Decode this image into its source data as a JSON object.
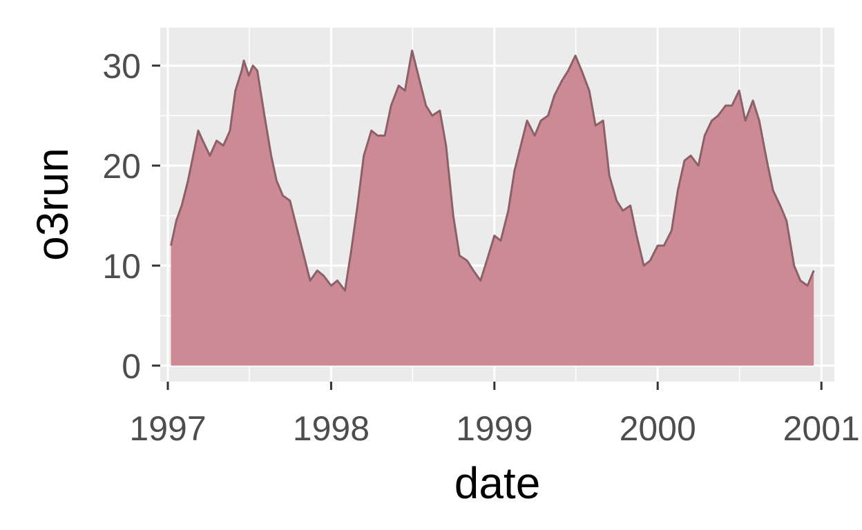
{
  "chart_data": {
    "type": "area",
    "title": "",
    "xlabel": "date",
    "ylabel": "o3run",
    "x_ticks": [
      "1997",
      "1998",
      "1999",
      "2000",
      "2001"
    ],
    "y_ticks": [
      0,
      10,
      20,
      30
    ],
    "xlim": [
      "1996-12-15",
      "2001-01-30"
    ],
    "ylim": [
      -1.6,
      33.8
    ],
    "grid": true,
    "legend": "none",
    "colors": {
      "panel": "#EBEBEB",
      "grid": "#FFFFFF",
      "fill": "#CC8A94",
      "line": "#8B6068",
      "tick_text": "#4D4D4D"
    },
    "series": [
      {
        "x": [
          "1997-01-08",
          "1997-01-20",
          "1997-02-01",
          "1997-02-15",
          "1997-03-01",
          "1997-03-10",
          "1997-03-20",
          "1997-04-05",
          "1997-04-20",
          "1997-05-05",
          "1997-05-20",
          "1997-06-01",
          "1997-06-15",
          "1997-06-20",
          "1997-07-01",
          "1997-07-10",
          "1997-07-20",
          "1997-08-05",
          "1997-08-20",
          "1997-09-01",
          "1997-09-15",
          "1997-10-01",
          "1997-10-15",
          "1997-11-01",
          "1997-11-15",
          "1997-12-01",
          "1997-12-15",
          "1998-01-01",
          "1998-01-15",
          "1998-02-01",
          "1998-02-15",
          "1998-03-01",
          "1998-03-15",
          "1998-04-01",
          "1998-04-15",
          "1998-05-01",
          "1998-05-15",
          "1998-06-01",
          "1998-06-15",
          "1998-07-01",
          "1998-07-15",
          "1998-08-01",
          "1998-08-15",
          "1998-09-01",
          "1998-09-15",
          "1998-10-01",
          "1998-10-15",
          "1998-11-01",
          "1998-11-15",
          "1998-12-01",
          "1998-12-15",
          "1999-01-01",
          "1999-01-15",
          "1999-02-01",
          "1999-02-15",
          "1999-03-01",
          "1999-03-15",
          "1999-04-01",
          "1999-04-15",
          "1999-05-01",
          "1999-05-15",
          "1999-06-01",
          "1999-06-15",
          "1999-07-01",
          "1999-07-15",
          "1999-08-01",
          "1999-08-15",
          "1999-09-01",
          "1999-09-15",
          "1999-10-01",
          "1999-10-15",
          "1999-11-01",
          "1999-11-15",
          "1999-12-01",
          "1999-12-15",
          "2000-01-01",
          "2000-01-15",
          "2000-02-01",
          "2000-02-15",
          "2000-03-01",
          "2000-03-15",
          "2000-04-01",
          "2000-04-15",
          "2000-05-01",
          "2000-05-15",
          "2000-06-01",
          "2000-06-15",
          "2000-07-01",
          "2000-07-15",
          "2000-08-01",
          "2000-08-15",
          "2000-09-01",
          "2000-09-15",
          "2000-10-01",
          "2000-10-15",
          "2000-11-01",
          "2000-11-15",
          "2000-12-01",
          "2000-12-15"
        ],
        "y": [
          12.0,
          14.5,
          16.0,
          18.5,
          21.5,
          23.5,
          22.5,
          21.0,
          22.5,
          22.0,
          23.5,
          27.5,
          29.5,
          30.5,
          29.0,
          30.0,
          29.5,
          25.0,
          21.0,
          18.5,
          17.0,
          16.5,
          14.0,
          11.0,
          8.5,
          9.5,
          9.0,
          8.0,
          8.5,
          7.5,
          11.5,
          16.0,
          21.0,
          23.5,
          23.0,
          23.0,
          26.0,
          28.0,
          27.5,
          31.5,
          29.0,
          26.0,
          25.0,
          25.5,
          22.0,
          15.0,
          11.0,
          10.5,
          9.5,
          8.5,
          10.5,
          13.0,
          12.5,
          15.5,
          19.5,
          22.0,
          24.5,
          23.0,
          24.5,
          25.0,
          27.0,
          28.5,
          29.5,
          31.0,
          29.5,
          27.5,
          24.0,
          24.5,
          19.0,
          16.5,
          15.5,
          16.0,
          13.0,
          10.0,
          10.5,
          12.0,
          12.0,
          13.5,
          17.5,
          20.5,
          21.0,
          20.0,
          23.0,
          24.5,
          25.0,
          26.0,
          26.0,
          27.5,
          24.5,
          26.5,
          24.5,
          20.5,
          17.5,
          16.0,
          14.5,
          10.0,
          8.5,
          8.0,
          9.5
        ]
      }
    ]
  }
}
